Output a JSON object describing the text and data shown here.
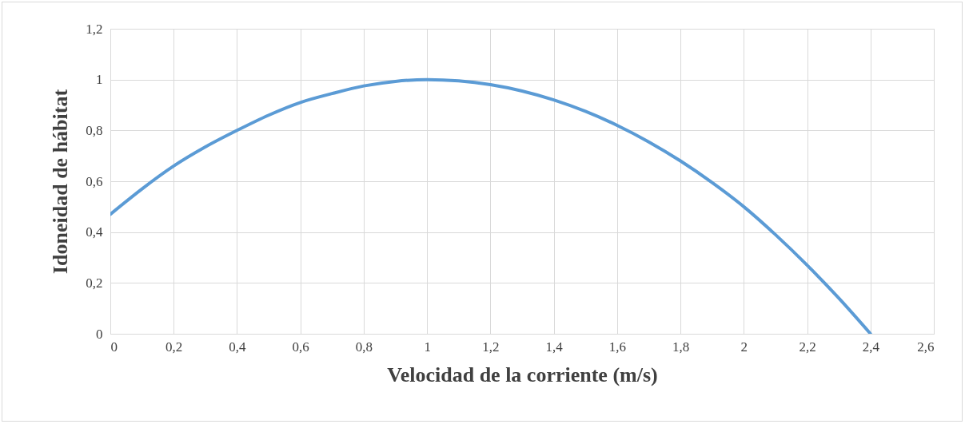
{
  "chart_data": {
    "type": "line",
    "xlabel": "Velocidad de la corriente (m/s)",
    "ylabel": "Idoneidad de hábitat",
    "x": [
      0,
      0.1,
      0.2,
      0.3,
      0.4,
      0.5,
      0.6,
      0.7,
      0.8,
      0.9,
      1.0,
      1.1,
      1.2,
      1.3,
      1.4,
      1.5,
      1.6,
      1.7,
      1.8,
      1.9,
      2.0,
      2.1,
      2.2,
      2.3,
      2.4
    ],
    "series": [
      {
        "color": "#5b9bd5",
        "values": [
          0.47,
          0.57,
          0.66,
          0.735,
          0.8,
          0.86,
          0.91,
          0.945,
          0.975,
          0.993,
          1.0,
          0.995,
          0.98,
          0.955,
          0.92,
          0.875,
          0.82,
          0.755,
          0.68,
          0.595,
          0.5,
          0.39,
          0.27,
          0.14,
          0.0
        ]
      }
    ],
    "xlim": [
      0,
      2.6
    ],
    "ylim": [
      0,
      1.2
    ],
    "xticks": [
      0,
      {
        "value": 0.2,
        "label": "0,2"
      },
      {
        "value": 0.4,
        "label": "0,4"
      },
      {
        "value": 0.6,
        "label": "0,6"
      },
      {
        "value": 0.8,
        "label": "0,8"
      },
      1,
      {
        "value": 1.2,
        "label": "1,2"
      },
      {
        "value": 1.4,
        "label": "1,4"
      },
      {
        "value": 1.6,
        "label": "1,6"
      },
      {
        "value": 1.8,
        "label": "1,8"
      },
      2,
      {
        "value": 2.2,
        "label": "2,2"
      },
      {
        "value": 2.4,
        "label": "2,4"
      },
      {
        "value": 2.6,
        "label": "2,6"
      }
    ],
    "yticks": [
      0,
      {
        "value": 0.2,
        "label": "0,2"
      },
      {
        "value": 0.4,
        "label": "0,4"
      },
      {
        "value": 0.6,
        "label": "0,6"
      },
      {
        "value": 0.8,
        "label": "0,8"
      },
      1,
      {
        "value": 1.2,
        "label": "1,2"
      }
    ],
    "grid": true,
    "line_style": "solid",
    "marker": "none"
  }
}
